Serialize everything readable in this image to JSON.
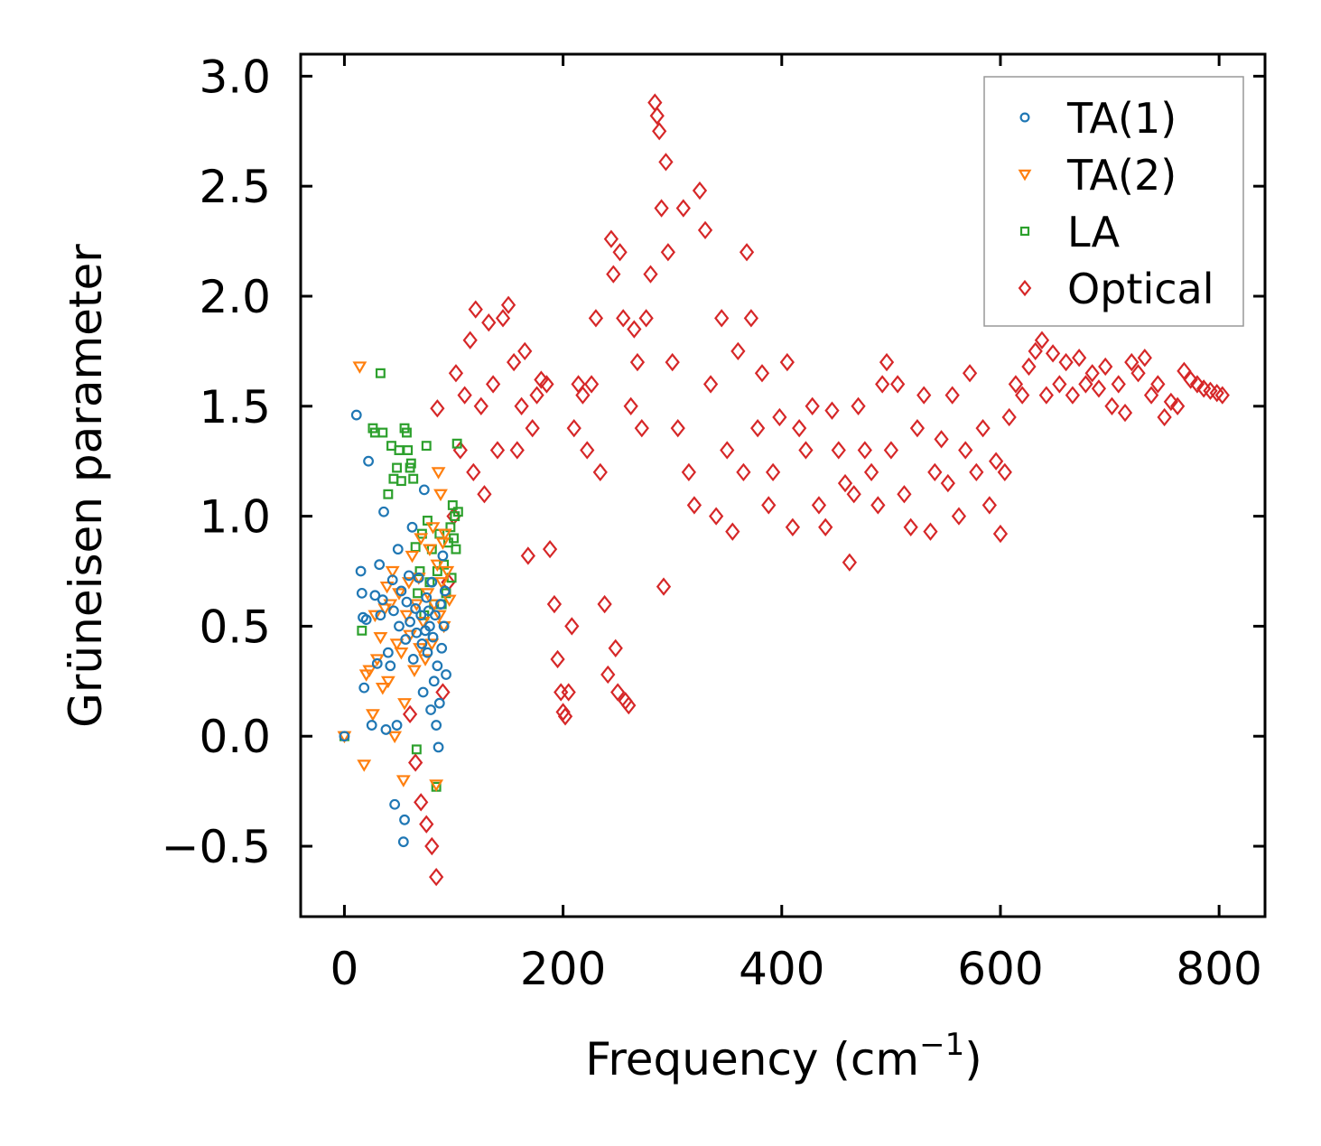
{
  "chart_data": {
    "type": "scatter",
    "title": "",
    "xlabel": "Frequency (cm",
    "xlabel_sup": "−1",
    "xlabel_close": ")",
    "ylabel": "Grüneisen parameter",
    "xlim": [
      -40,
      842
    ],
    "ylim": [
      -0.82,
      3.1
    ],
    "xticks": [
      0,
      200,
      400,
      600,
      800
    ],
    "xtick_labels": [
      "0",
      "200",
      "400",
      "600",
      "800"
    ],
    "yticks": [
      -0.5,
      0.0,
      0.5,
      1.0,
      1.5,
      2.0,
      2.5,
      3.0
    ],
    "ytick_labels": [
      "−0.5",
      "0.0",
      "0.5",
      "1.0",
      "1.5",
      "2.0",
      "2.5",
      "3.0"
    ],
    "grid": false,
    "legend_position": "top-right",
    "series": [
      {
        "name": "TA(1)",
        "marker": "circle",
        "color": "#1f77b4",
        "points": [
          [
            0,
            0.0
          ],
          [
            11,
            1.46
          ],
          [
            15,
            0.75
          ],
          [
            16,
            0.65
          ],
          [
            17,
            0.54
          ],
          [
            18,
            0.22
          ],
          [
            20,
            0.53
          ],
          [
            22,
            1.25
          ],
          [
            25,
            0.05
          ],
          [
            28,
            0.64
          ],
          [
            30,
            0.33
          ],
          [
            32,
            0.78
          ],
          [
            33,
            0.55
          ],
          [
            35,
            0.62
          ],
          [
            36,
            1.02
          ],
          [
            38,
            0.03
          ],
          [
            40,
            0.38
          ],
          [
            42,
            0.32
          ],
          [
            44,
            0.71
          ],
          [
            45,
            0.57
          ],
          [
            46,
            -0.31
          ],
          [
            48,
            0.05
          ],
          [
            49,
            0.85
          ],
          [
            50,
            0.5
          ],
          [
            52,
            0.66
          ],
          [
            54,
            -0.48
          ],
          [
            55,
            -0.38
          ],
          [
            56,
            0.44
          ],
          [
            57,
            0.61
          ],
          [
            59,
            0.73
          ],
          [
            60,
            0.52
          ],
          [
            62,
            0.95
          ],
          [
            63,
            0.35
          ],
          [
            65,
            0.58
          ],
          [
            66,
            0.47
          ],
          [
            68,
            0.72
          ],
          [
            70,
            0.55
          ],
          [
            71,
            0.42
          ],
          [
            72,
            0.2
          ],
          [
            73,
            1.12
          ],
          [
            74,
            0.48
          ],
          [
            75,
            0.63
          ],
          [
            76,
            0.38
          ],
          [
            77,
            0.57
          ],
          [
            78,
            0.5
          ],
          [
            79,
            0.12
          ],
          [
            80,
            0.7
          ],
          [
            81,
            0.45
          ],
          [
            82,
            0.25
          ],
          [
            83,
            0.55
          ],
          [
            84,
            0.05
          ],
          [
            85,
            0.32
          ],
          [
            86,
            -0.05
          ],
          [
            87,
            0.15
          ],
          [
            88,
            0.6
          ],
          [
            89,
            0.4
          ],
          [
            90,
            0.82
          ],
          [
            91,
            0.5
          ],
          [
            92,
            0.66
          ],
          [
            93,
            0.28
          ]
        ]
      },
      {
        "name": "TA(2)",
        "marker": "triangle-down",
        "color": "#ff7f0e",
        "points": [
          [
            0,
            0.0
          ],
          [
            14,
            1.68
          ],
          [
            18,
            -0.13
          ],
          [
            20,
            0.28
          ],
          [
            23,
            0.3
          ],
          [
            26,
            0.1
          ],
          [
            28,
            0.55
          ],
          [
            30,
            0.35
          ],
          [
            33,
            0.45
          ],
          [
            35,
            0.22
          ],
          [
            37,
            0.58
          ],
          [
            39,
            0.68
          ],
          [
            40,
            0.25
          ],
          [
            42,
            0.6
          ],
          [
            44,
            0.75
          ],
          [
            46,
            0.0
          ],
          [
            48,
            0.42
          ],
          [
            50,
            0.65
          ],
          [
            52,
            0.38
          ],
          [
            54,
            -0.2
          ],
          [
            55,
            0.15
          ],
          [
            57,
            0.55
          ],
          [
            59,
            0.7
          ],
          [
            60,
            0.46
          ],
          [
            62,
            0.82
          ],
          [
            64,
            0.3
          ],
          [
            66,
            0.6
          ],
          [
            68,
            0.72
          ],
          [
            69,
            0.4
          ],
          [
            70,
            0.9
          ],
          [
            72,
            0.52
          ],
          [
            74,
            0.35
          ],
          [
            76,
            0.65
          ],
          [
            78,
            0.85
          ],
          [
            80,
            0.42
          ],
          [
            81,
            0.95
          ],
          [
            82,
            0.6
          ],
          [
            84,
            -0.22
          ],
          [
            85,
            0.78
          ],
          [
            86,
            1.2
          ],
          [
            87,
            0.55
          ],
          [
            88,
            1.1
          ],
          [
            89,
            0.7
          ],
          [
            90,
            0.88
          ],
          [
            91,
            0.5
          ],
          [
            92,
            0.92
          ],
          [
            94,
            0.75
          ],
          [
            96,
            0.62
          ]
        ]
      },
      {
        "name": "LA",
        "marker": "square",
        "color": "#2ca02c",
        "points": [
          [
            0,
            0.0
          ],
          [
            16,
            0.48
          ],
          [
            26,
            1.4
          ],
          [
            28,
            1.38
          ],
          [
            33,
            1.65
          ],
          [
            35,
            1.38
          ],
          [
            40,
            1.1
          ],
          [
            43,
            1.32
          ],
          [
            45,
            1.17
          ],
          [
            48,
            1.22
          ],
          [
            50,
            1.3
          ],
          [
            52,
            1.16
          ],
          [
            55,
            1.4
          ],
          [
            57,
            1.38
          ],
          [
            58,
            1.3
          ],
          [
            60,
            1.22
          ],
          [
            61,
            1.24
          ],
          [
            63,
            1.17
          ],
          [
            65,
            0.86
          ],
          [
            66,
            -0.06
          ],
          [
            67,
            0.65
          ],
          [
            69,
            0.75
          ],
          [
            71,
            0.92
          ],
          [
            73,
            0.55
          ],
          [
            75,
            1.32
          ],
          [
            76,
            0.98
          ],
          [
            78,
            0.7
          ],
          [
            80,
            0.85
          ],
          [
            82,
            0.6
          ],
          [
            84,
            -0.23
          ],
          [
            85,
            0.75
          ],
          [
            87,
            0.92
          ],
          [
            89,
            0.6
          ],
          [
            91,
            0.78
          ],
          [
            93,
            0.65
          ],
          [
            95,
            0.88
          ],
          [
            97,
            0.95
          ],
          [
            98,
            0.72
          ],
          [
            99,
            1.05
          ],
          [
            100,
            0.9
          ],
          [
            101,
            1.0
          ],
          [
            102,
            0.85
          ],
          [
            103,
            1.33
          ],
          [
            104,
            1.02
          ]
        ]
      },
      {
        "name": "Optical",
        "marker": "diamond",
        "color": "#d62728",
        "points": [
          [
            60,
            0.1
          ],
          [
            65,
            -0.12
          ],
          [
            70,
            -0.3
          ],
          [
            75,
            -0.4
          ],
          [
            80,
            -0.5
          ],
          [
            84,
            -0.64
          ],
          [
            85,
            1.49
          ],
          [
            90,
            0.2
          ],
          [
            95,
            0.7
          ],
          [
            100,
            1.0
          ],
          [
            102,
            1.65
          ],
          [
            106,
            1.3
          ],
          [
            110,
            1.55
          ],
          [
            115,
            1.8
          ],
          [
            118,
            1.2
          ],
          [
            120,
            1.94
          ],
          [
            125,
            1.5
          ],
          [
            128,
            1.1
          ],
          [
            132,
            1.88
          ],
          [
            136,
            1.6
          ],
          [
            140,
            1.3
          ],
          [
            145,
            1.9
          ],
          [
            150,
            1.96
          ],
          [
            155,
            1.7
          ],
          [
            158,
            1.3
          ],
          [
            162,
            1.5
          ],
          [
            165,
            1.75
          ],
          [
            168,
            0.82
          ],
          [
            172,
            1.4
          ],
          [
            176,
            1.55
          ],
          [
            180,
            1.62
          ],
          [
            185,
            1.6
          ],
          [
            188,
            0.85
          ],
          [
            192,
            0.6
          ],
          [
            195,
            0.35
          ],
          [
            198,
            0.2
          ],
          [
            200,
            0.11
          ],
          [
            202,
            0.09
          ],
          [
            205,
            0.2
          ],
          [
            208,
            0.5
          ],
          [
            210,
            1.4
          ],
          [
            214,
            1.6
          ],
          [
            218,
            1.55
          ],
          [
            222,
            1.3
          ],
          [
            226,
            1.6
          ],
          [
            230,
            1.9
          ],
          [
            234,
            1.2
          ],
          [
            238,
            0.6
          ],
          [
            241,
            0.28
          ],
          [
            244,
            2.26
          ],
          [
            246,
            2.1
          ],
          [
            248,
            0.4
          ],
          [
            250,
            0.2
          ],
          [
            252,
            2.2
          ],
          [
            255,
            1.9
          ],
          [
            257,
            0.16
          ],
          [
            260,
            0.14
          ],
          [
            262,
            1.5
          ],
          [
            265,
            1.85
          ],
          [
            268,
            1.7
          ],
          [
            272,
            1.4
          ],
          [
            276,
            1.9
          ],
          [
            280,
            2.1
          ],
          [
            284,
            2.88
          ],
          [
            286,
            2.82
          ],
          [
            288,
            2.75
          ],
          [
            290,
            2.4
          ],
          [
            292,
            0.68
          ],
          [
            294,
            2.61
          ],
          [
            296,
            2.2
          ],
          [
            300,
            1.7
          ],
          [
            305,
            1.4
          ],
          [
            310,
            2.4
          ],
          [
            315,
            1.2
          ],
          [
            320,
            1.05
          ],
          [
            325,
            2.48
          ],
          [
            330,
            2.3
          ],
          [
            335,
            1.6
          ],
          [
            340,
            1.0
          ],
          [
            345,
            1.9
          ],
          [
            350,
            1.3
          ],
          [
            355,
            0.93
          ],
          [
            360,
            1.75
          ],
          [
            365,
            1.2
          ],
          [
            368,
            2.2
          ],
          [
            372,
            1.9
          ],
          [
            378,
            1.4
          ],
          [
            382,
            1.65
          ],
          [
            388,
            1.05
          ],
          [
            392,
            1.2
          ],
          [
            398,
            1.45
          ],
          [
            405,
            1.7
          ],
          [
            410,
            0.95
          ],
          [
            416,
            1.4
          ],
          [
            422,
            1.3
          ],
          [
            428,
            1.5
          ],
          [
            434,
            1.05
          ],
          [
            440,
            0.95
          ],
          [
            446,
            1.48
          ],
          [
            452,
            1.3
          ],
          [
            458,
            1.15
          ],
          [
            462,
            0.79
          ],
          [
            466,
            1.1
          ],
          [
            470,
            1.5
          ],
          [
            476,
            1.3
          ],
          [
            482,
            1.2
          ],
          [
            488,
            1.05
          ],
          [
            492,
            1.6
          ],
          [
            496,
            1.7
          ],
          [
            500,
            1.3
          ],
          [
            506,
            1.6
          ],
          [
            512,
            1.1
          ],
          [
            518,
            0.95
          ],
          [
            524,
            1.4
          ],
          [
            530,
            1.55
          ],
          [
            536,
            0.93
          ],
          [
            540,
            1.2
          ],
          [
            546,
            1.35
          ],
          [
            552,
            1.15
          ],
          [
            556,
            1.55
          ],
          [
            562,
            1.0
          ],
          [
            568,
            1.3
          ],
          [
            572,
            1.65
          ],
          [
            578,
            1.2
          ],
          [
            584,
            1.4
          ],
          [
            590,
            1.05
          ],
          [
            596,
            1.25
          ],
          [
            600,
            0.92
          ],
          [
            604,
            1.2
          ],
          [
            608,
            1.45
          ],
          [
            614,
            1.6
          ],
          [
            620,
            1.55
          ],
          [
            626,
            1.68
          ],
          [
            632,
            1.75
          ],
          [
            638,
            1.8
          ],
          [
            642,
            1.55
          ],
          [
            648,
            1.74
          ],
          [
            654,
            1.6
          ],
          [
            660,
            1.7
          ],
          [
            666,
            1.55
          ],
          [
            672,
            1.72
          ],
          [
            678,
            1.6
          ],
          [
            684,
            1.65
          ],
          [
            690,
            1.58
          ],
          [
            696,
            1.68
          ],
          [
            702,
            1.5
          ],
          [
            708,
            1.6
          ],
          [
            714,
            1.47
          ],
          [
            720,
            1.7
          ],
          [
            726,
            1.65
          ],
          [
            732,
            1.72
          ],
          [
            738,
            1.55
          ],
          [
            744,
            1.6
          ],
          [
            750,
            1.45
          ],
          [
            756,
            1.52
          ],
          [
            762,
            1.5
          ],
          [
            768,
            1.66
          ],
          [
            774,
            1.62
          ],
          [
            780,
            1.6
          ],
          [
            786,
            1.58
          ],
          [
            792,
            1.57
          ],
          [
            798,
            1.56
          ],
          [
            803,
            1.55
          ]
        ]
      }
    ]
  }
}
